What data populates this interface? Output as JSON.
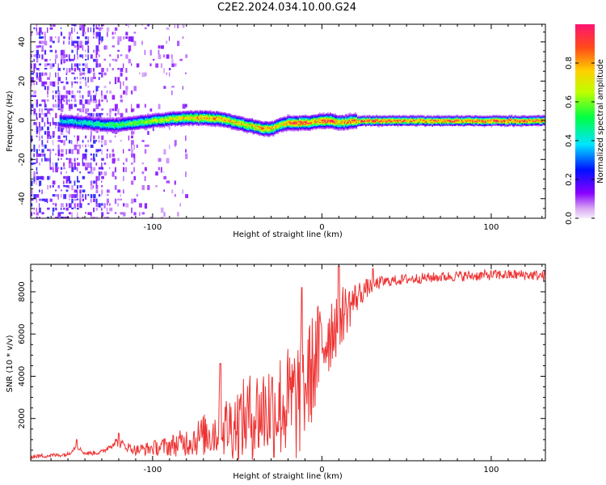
{
  "figure": {
    "title": "C2E2.2024.034.10.00.G24"
  },
  "chart_data": [
    {
      "type": "heatmap",
      "xlabel": "Height of straight line (km)",
      "ylabel": "Frequency (Hz)",
      "xlim": [
        -172,
        132
      ],
      "ylim": [
        -50,
        49
      ],
      "xticks": [
        -100,
        0,
        100
      ],
      "yticks": [
        -40,
        -20,
        0,
        20,
        40
      ],
      "grid": false,
      "colorbar": {
        "label": "Normalized spectral amplitude",
        "range": [
          0.0,
          1.0
        ],
        "ticks": [
          0.0,
          0.2,
          0.4,
          0.6,
          0.8
        ],
        "colors": [
          "#e9d2f7",
          "#8800ff",
          "#0011ff",
          "#00e5ff",
          "#00ff44",
          "#bfff00",
          "#ffd000",
          "#ff4a1a",
          "#ff1470"
        ]
      },
      "ridge": {
        "x": [
          -155,
          -140,
          -130,
          -120,
          -110,
          -100,
          -90,
          -80,
          -70,
          -60,
          -50,
          -40,
          -35,
          -30,
          -25,
          -20,
          -15,
          -10,
          -5,
          0,
          5,
          10,
          15,
          20,
          30,
          50,
          80,
          110,
          132
        ],
        "center_freq_hz": [
          0,
          -1,
          -2,
          -2,
          -1,
          0,
          1,
          1.5,
          1.5,
          1,
          -1,
          -3,
          -4,
          -4,
          -2,
          -1,
          -1,
          -1,
          -0.5,
          0,
          0,
          -1,
          -0.5,
          0,
          0,
          0,
          0,
          0,
          0
        ],
        "peak_amplitude": [
          0.4,
          0.45,
          0.5,
          0.55,
          0.6,
          0.65,
          0.7,
          0.75,
          0.85,
          0.8,
          0.75,
          0.75,
          0.85,
          0.8,
          0.7,
          0.85,
          0.9,
          0.95,
          0.8,
          0.95,
          1.0,
          0.8,
          0.85,
          0.9,
          0.95,
          0.9,
          0.9,
          0.95,
          0.9
        ]
      }
    },
    {
      "type": "line",
      "xlabel": "Height of straight line (km)",
      "ylabel": "SNR (10 * v/v)",
      "xlim": [
        -172,
        132
      ],
      "ylim": [
        0,
        9300
      ],
      "xticks": [
        -100,
        0,
        100
      ],
      "yticks": [
        2000,
        4000,
        6000,
        8000
      ],
      "grid": false,
      "line_color": "#ee3333",
      "series": [
        {
          "x": [
            -172,
            -160,
            -150,
            -145,
            -140,
            -130,
            -122,
            -110,
            -100,
            -90,
            -80,
            -70,
            -60,
            -50,
            -40,
            -30,
            -20,
            -15,
            -10,
            -5,
            0,
            5,
            10,
            15,
            20,
            25,
            30,
            35,
            40,
            50,
            60,
            70,
            80,
            90,
            100,
            110,
            120,
            132
          ],
          "y": [
            200,
            250,
            300,
            700,
            350,
            400,
            900,
            500,
            600,
            700,
            900,
            1200,
            1500,
            1800,
            2200,
            2500,
            2700,
            2800,
            3500,
            4500,
            5500,
            6200,
            6800,
            7200,
            7700,
            8100,
            8300,
            8450,
            8500,
            8600,
            8650,
            8700,
            8750,
            8750,
            8800,
            8800,
            8800,
            8750
          ],
          "noise_envelope": [
            100,
            100,
            100,
            100,
            100,
            120,
            200,
            250,
            350,
            500,
            700,
            1000,
            1400,
            1800,
            2200,
            2500,
            2800,
            3000,
            2800,
            2600,
            2400,
            2000,
            1600,
            1200,
            800,
            500,
            350,
            300,
            250,
            250,
            250,
            250,
            250,
            250,
            250,
            250,
            250,
            250
          ],
          "spikes": [
            {
              "x": -12,
              "y": 8200
            },
            {
              "x": 10,
              "y": 9200
            },
            {
              "x": -145,
              "y": 1000
            },
            {
              "x": -120,
              "y": 1300
            },
            {
              "x": 30,
              "y": 9100
            },
            {
              "x": -60,
              "y": 4600
            }
          ]
        }
      ]
    }
  ]
}
